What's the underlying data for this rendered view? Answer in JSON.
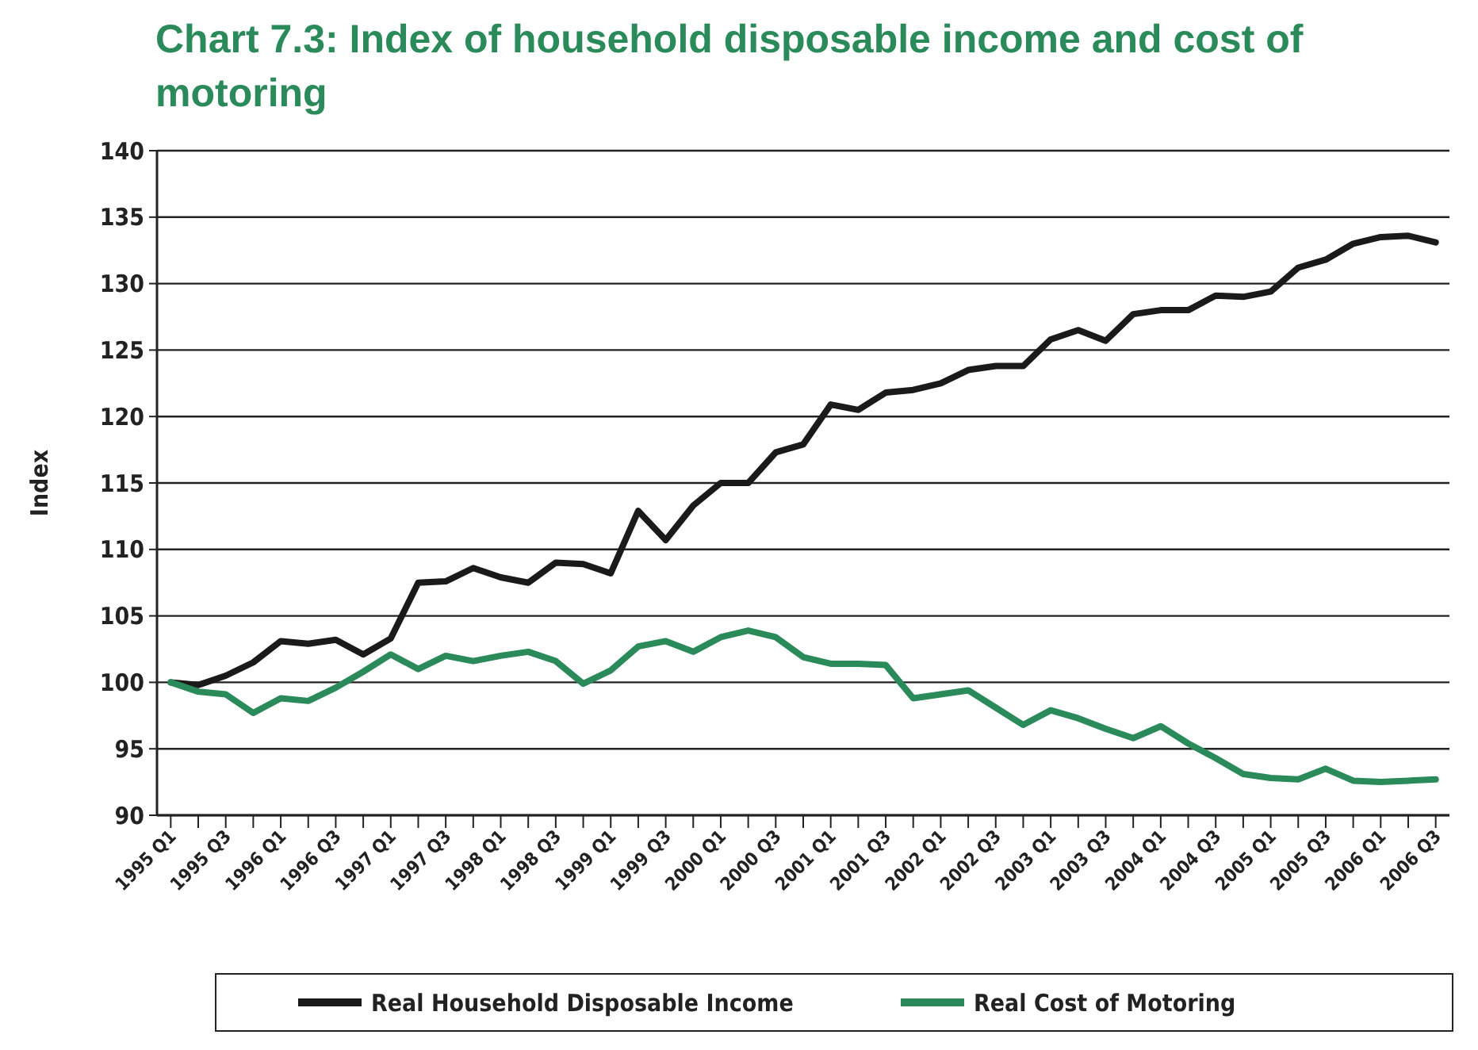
{
  "chart_data": {
    "type": "line",
    "title": "Chart 7.3: Index of household disposable income and cost of motoring",
    "ylabel": "Index",
    "categories": [
      "1995 Q1",
      null,
      "1995 Q3",
      null,
      "1996 Q1",
      null,
      "1996 Q3",
      null,
      "1997 Q1",
      null,
      "1997 Q3",
      null,
      "1998 Q1",
      null,
      "1998 Q3",
      null,
      "1999 Q1",
      null,
      "1999 Q3",
      null,
      "2000 Q1",
      null,
      "2000 Q3",
      null,
      "2001 Q1",
      null,
      "2001 Q3",
      null,
      "2002 Q1",
      null,
      "2002 Q3",
      null,
      "2003 Q1",
      null,
      "2003 Q3",
      null,
      "2004 Q1",
      null,
      "2004 Q3",
      null,
      "2005 Q1",
      null,
      "2005 Q3",
      null,
      "2006 Q1",
      null,
      "2006 Q3"
    ],
    "series": [
      {
        "name": "Real Household Disposable Income",
        "color": "#1a1a1a",
        "values": [
          100,
          99.8,
          100.5,
          101.5,
          103.1,
          102.9,
          103.2,
          102.1,
          103.3,
          107.5,
          107.6,
          108.6,
          107.9,
          107.5,
          109,
          108.9,
          108.2,
          112.9,
          110.7,
          113.3,
          115,
          115,
          117.3,
          117.9,
          120.9,
          120.5,
          121.8,
          122,
          122.5,
          123.5,
          123.8,
          123.8,
          125.8,
          126.5,
          125.7,
          127.7,
          128,
          128,
          129.1,
          129,
          129.4,
          131.2,
          131.8,
          133,
          133.5,
          133.6,
          133.1
        ]
      },
      {
        "name": "Real Cost of Motoring",
        "color": "#2a8a5a",
        "values": [
          100,
          99.3,
          99.1,
          97.7,
          98.8,
          98.6,
          99.6,
          100.8,
          102.1,
          101,
          102,
          101.6,
          102,
          102.3,
          101.6,
          99.9,
          100.9,
          102.7,
          103.1,
          102.3,
          103.4,
          103.9,
          103.4,
          101.9,
          101.4,
          101.4,
          101.3,
          98.8,
          99.1,
          99.4,
          98.1,
          96.8,
          97.9,
          97.3,
          96.5,
          95.8,
          96.7,
          95.4,
          94.3,
          93.1,
          92.8,
          92.7,
          93.5,
          92.6,
          92.5,
          92.6,
          92.7
        ]
      }
    ],
    "ylim": [
      90,
      140
    ],
    "yticks": [
      90,
      95,
      100,
      105,
      110,
      115,
      120,
      125,
      130,
      135,
      140
    ],
    "grid": "y",
    "legend": "bottom"
  }
}
